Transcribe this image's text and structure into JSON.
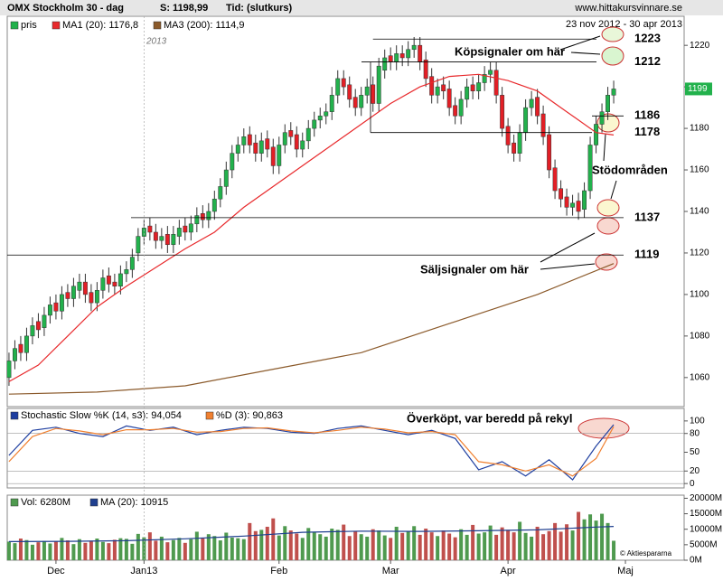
{
  "chart_data": [
    {
      "type": "candlestick",
      "title": "OMX Stockholm 30 - dag",
      "subtitle": "S: 1198,99",
      "time_label": "Tid: (slutkurs)",
      "source": "www.hittakursvinnare.se",
      "date_range": "23 nov 2012 - 30 apr 2013",
      "year_label": "2013",
      "name": "pris",
      "color": "#22b14c",
      "down_color": "#e21f26",
      "open": [
        1060,
        1068,
        1076,
        1072,
        1080,
        1087,
        1084,
        1090,
        1096,
        1092,
        1101,
        1098,
        1102,
        1106,
        1101,
        1096,
        1102,
        1109,
        1106,
        1104,
        1110,
        1112,
        1120,
        1128,
        1133,
        1130,
        1126,
        1129,
        1124,
        1128,
        1133,
        1130,
        1134,
        1139,
        1136,
        1140,
        1146,
        1152,
        1160,
        1168,
        1172,
        1177,
        1173,
        1168,
        1175,
        1171,
        1162,
        1172,
        1179,
        1177,
        1170,
        1174,
        1180,
        1184,
        1186,
        1188,
        1196,
        1204,
        1201,
        1195,
        1190,
        1196,
        1201,
        1192,
        1208,
        1215,
        1212,
        1216,
        1214,
        1218,
        1220,
        1213,
        1205,
        1196,
        1201,
        1199,
        1191,
        1186,
        1194,
        1201,
        1198,
        1202,
        1206,
        1208,
        1196,
        1181,
        1173,
        1168,
        1178,
        1190,
        1195,
        1187,
        1177,
        1161,
        1151,
        1147,
        1142,
        1145,
        1141,
        1150,
        1172,
        1182,
        1188,
        1196
      ],
      "high": [
        1072,
        1078,
        1080,
        1084,
        1089,
        1091,
        1094,
        1099,
        1100,
        1104,
        1105,
        1108,
        1110,
        1110,
        1105,
        1106,
        1112,
        1113,
        1110,
        1114,
        1116,
        1122,
        1132,
        1136,
        1137,
        1134,
        1132,
        1133,
        1133,
        1136,
        1137,
        1138,
        1142,
        1143,
        1144,
        1150,
        1156,
        1164,
        1172,
        1176,
        1180,
        1181,
        1177,
        1178,
        1179,
        1175,
        1176,
        1182,
        1183,
        1181,
        1178,
        1184,
        1188,
        1190,
        1192,
        1200,
        1208,
        1208,
        1205,
        1199,
        1200,
        1204,
        1205,
        1214,
        1218,
        1219,
        1220,
        1220,
        1222,
        1224,
        1224,
        1217,
        1209,
        1204,
        1205,
        1203,
        1195,
        1198,
        1204,
        1205,
        1206,
        1210,
        1212,
        1212,
        1200,
        1185,
        1177,
        1182,
        1194,
        1198,
        1199,
        1191,
        1181,
        1165,
        1155,
        1151,
        1148,
        1149,
        1154,
        1176,
        1186,
        1192,
        1200,
        1203
      ],
      "low": [
        1056,
        1064,
        1068,
        1068,
        1076,
        1079,
        1080,
        1086,
        1088,
        1088,
        1094,
        1094,
        1098,
        1096,
        1092,
        1092,
        1098,
        1101,
        1100,
        1100,
        1106,
        1108,
        1116,
        1124,
        1126,
        1122,
        1122,
        1120,
        1120,
        1124,
        1126,
        1126,
        1130,
        1132,
        1132,
        1136,
        1142,
        1148,
        1156,
        1164,
        1168,
        1168,
        1164,
        1164,
        1166,
        1158,
        1158,
        1168,
        1172,
        1166,
        1166,
        1170,
        1176,
        1180,
        1182,
        1184,
        1192,
        1196,
        1190,
        1186,
        1186,
        1192,
        1188,
        1188,
        1204,
        1208,
        1208,
        1210,
        1210,
        1214,
        1208,
        1200,
        1192,
        1192,
        1194,
        1186,
        1182,
        1182,
        1190,
        1194,
        1194,
        1198,
        1202,
        1192,
        1176,
        1168,
        1164,
        1164,
        1174,
        1186,
        1182,
        1172,
        1156,
        1146,
        1142,
        1138,
        1138,
        1136,
        1137,
        1146,
        1168,
        1178,
        1184,
        1192
      ],
      "close": [
        1068,
        1074,
        1072,
        1080,
        1085,
        1083,
        1090,
        1095,
        1092,
        1100,
        1098,
        1104,
        1106,
        1100,
        1096,
        1102,
        1108,
        1105,
        1104,
        1110,
        1112,
        1118,
        1128,
        1132,
        1130,
        1126,
        1128,
        1124,
        1129,
        1132,
        1130,
        1134,
        1138,
        1136,
        1140,
        1146,
        1152,
        1160,
        1168,
        1172,
        1176,
        1172,
        1168,
        1174,
        1170,
        1162,
        1172,
        1178,
        1176,
        1170,
        1174,
        1180,
        1184,
        1186,
        1188,
        1196,
        1204,
        1200,
        1194,
        1190,
        1196,
        1200,
        1192,
        1210,
        1214,
        1212,
        1216,
        1214,
        1218,
        1220,
        1212,
        1204,
        1196,
        1200,
        1198,
        1190,
        1186,
        1194,
        1200,
        1198,
        1202,
        1206,
        1208,
        1196,
        1180,
        1172,
        1168,
        1178,
        1190,
        1194,
        1186,
        1176,
        1160,
        1150,
        1146,
        1142,
        1144,
        1140,
        1150,
        1172,
        1182,
        1188,
        1196,
        1199
      ],
      "series": [
        {
          "name": "MA1 (20): 1176,8",
          "color": "#e8292c",
          "x": [
            0,
            5,
            10,
            15,
            20,
            25,
            30,
            35,
            40,
            45,
            50,
            55,
            60,
            65,
            70,
            75,
            80,
            85,
            90,
            95,
            100,
            103
          ],
          "values": [
            1058,
            1066,
            1080,
            1094,
            1104,
            1113,
            1122,
            1130,
            1142,
            1152,
            1162,
            1172,
            1182,
            1192,
            1200,
            1205,
            1206,
            1203,
            1198,
            1188,
            1178,
            1176.8
          ]
        },
        {
          "name": "MA3 (200): 1114,9",
          "color": "#8b5a2b",
          "x": [
            0,
            15,
            30,
            45,
            60,
            75,
            90,
            103
          ],
          "values": [
            1052,
            1053,
            1056,
            1064,
            1072,
            1086,
            1100,
            1114.9
          ]
        }
      ],
      "last_price": 1199,
      "levels": [
        1223,
        1212,
        1186,
        1178,
        1137,
        1119
      ],
      "annotations": [
        "Köpsignaler om här",
        "Stödområden",
        "Säljsignaler om här"
      ],
      "xlim": [
        -0.3,
        115
      ],
      "ylim": [
        1046,
        1234
      ],
      "yticks": [
        1060,
        1080,
        1100,
        1120,
        1140,
        1160,
        1180,
        1200,
        1220
      ]
    },
    {
      "type": "line",
      "x": [
        0,
        4,
        8,
        12,
        16,
        20,
        24,
        28,
        32,
        36,
        40,
        44,
        48,
        52,
        56,
        60,
        64,
        68,
        72,
        76,
        80,
        84,
        88,
        92,
        96,
        100,
        103
      ],
      "series": [
        {
          "name": "Stochastic Slow %K (14, s3): 94,054",
          "color": "#1f3fa0",
          "values": [
            45,
            85,
            90,
            80,
            75,
            92,
            85,
            90,
            78,
            85,
            90,
            88,
            82,
            80,
            88,
            92,
            85,
            78,
            85,
            72,
            22,
            35,
            12,
            38,
            6,
            60,
            94.054
          ]
        },
        {
          "name": "%D (3): 90,863",
          "color": "#f08030",
          "values": [
            35,
            75,
            88,
            84,
            78,
            86,
            86,
            88,
            82,
            83,
            88,
            89,
            84,
            81,
            85,
            90,
            87,
            81,
            83,
            78,
            35,
            30,
            20,
            30,
            12,
            40,
            90.863
          ]
        }
      ],
      "annotations": [
        "Överköpt, var beredd på rekyl"
      ],
      "xlim": [
        -0.3,
        115
      ],
      "ylim": [
        -7,
        120
      ],
      "yticks": [
        0,
        20,
        50,
        80,
        100
      ]
    },
    {
      "type": "bar",
      "credit": "© Aktiespararna",
      "down_color": "#c0504d",
      "series": [
        {
          "name": "Vol: 6280M",
          "color": "#4f9a4f",
          "values": [
            6000,
            5500,
            7000,
            6500,
            5000,
            5800,
            6200,
            5400,
            6100,
            7200,
            6400,
            5200,
            6800,
            5600,
            6300,
            7000,
            5900,
            5500,
            6600,
            7100,
            6900,
            5300,
            8500,
            7400,
            9000,
            6300,
            7600,
            5800,
            6500,
            7200,
            5600,
            6800,
            9200,
            7000,
            8400,
            7800,
            6400,
            8900,
            7300,
            7100,
            6800,
            12000,
            9400,
            9800,
            10800,
            13500,
            8000,
            11000,
            9600,
            8600,
            7200,
            10400,
            9000,
            8400,
            7600,
            10200,
            9800,
            11500,
            7800,
            9200,
            8400,
            7600,
            10000,
            9600,
            8000,
            7200,
            10800,
            8800,
            9400,
            11000,
            8200,
            10200,
            9000,
            7800,
            9600,
            8600,
            7400,
            10000,
            8200,
            11400,
            8600,
            9000,
            11200,
            8200,
            10600,
            9800,
            9000,
            12400,
            8800,
            7600,
            10800,
            8400,
            9400,
            12000,
            9200,
            11600,
            9600,
            15600,
            13200,
            14800,
            12800,
            15000,
            12000,
            6280
          ]
        },
        {
          "name": "MA (20): 10915",
          "color": "#1f3f8f",
          "x": [
            0,
            10,
            20,
            30,
            40,
            50,
            60,
            70,
            80,
            90,
            100,
            103
          ],
          "values": [
            6000,
            6100,
            6300,
            6900,
            7800,
            9000,
            9400,
            9300,
            9500,
            9800,
            10700,
            10915
          ]
        }
      ],
      "xlim": [
        -0.3,
        115
      ],
      "ylim": [
        0,
        21000
      ],
      "yticks": [
        {
          "value": 0,
          "label": "0M"
        },
        {
          "value": 5000,
          "label": "5000M"
        },
        {
          "value": 10000,
          "label": "10000M"
        },
        {
          "value": 15000,
          "label": "15000M"
        },
        {
          "value": 20000,
          "label": "20000M"
        }
      ],
      "xticks": [
        {
          "value": 8,
          "label": "Dec"
        },
        {
          "value": 23,
          "label": "Jan13"
        },
        {
          "value": 46,
          "label": "Feb"
        },
        {
          "value": 65,
          "label": "Mar"
        },
        {
          "value": 85,
          "label": "Apr"
        },
        {
          "value": 105,
          "label": "Maj"
        }
      ]
    }
  ]
}
